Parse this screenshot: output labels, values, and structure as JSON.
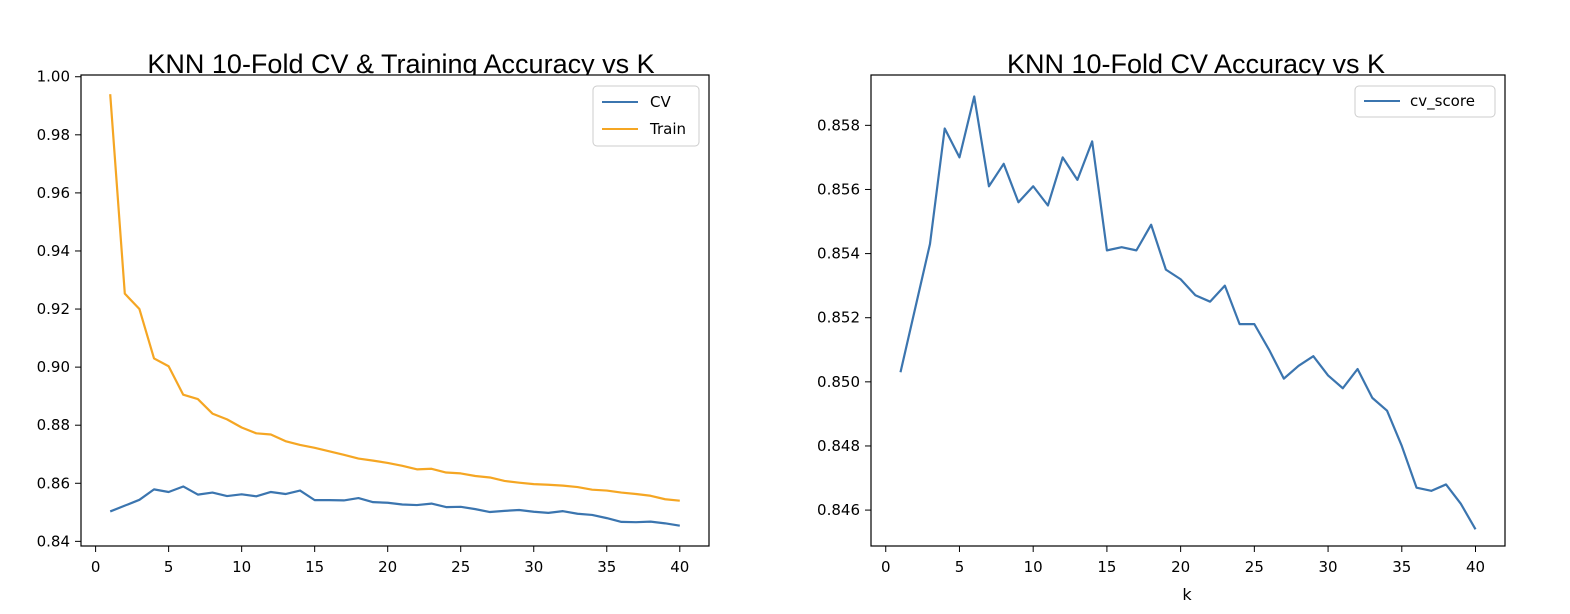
{
  "chart_data": [
    {
      "type": "line",
      "title": "KNN 10-Fold CV & Training Accuracy vs K",
      "xlabel": "",
      "ylabel": "",
      "xlim": [
        -1,
        42
      ],
      "ylim": [
        0.8384,
        1.0006
      ],
      "x_ticks": [
        0,
        5,
        10,
        15,
        20,
        25,
        30,
        35,
        40
      ],
      "y_ticks": [
        0.84,
        0.86,
        0.88,
        0.9,
        0.92,
        0.94,
        0.96,
        0.98,
        1.0
      ],
      "y_tick_labels": [
        "0.84",
        "0.86",
        "0.88",
        "0.90",
        "0.92",
        "0.94",
        "0.96",
        "0.98",
        "1.00"
      ],
      "grid": false,
      "legend_position": "top-right",
      "x": [
        1,
        2,
        3,
        4,
        5,
        6,
        7,
        8,
        9,
        10,
        11,
        12,
        13,
        14,
        15,
        16,
        17,
        18,
        19,
        20,
        21,
        22,
        23,
        24,
        25,
        26,
        27,
        28,
        29,
        30,
        31,
        32,
        33,
        34,
        35,
        36,
        37,
        38,
        39,
        40
      ],
      "series": [
        {
          "name": "CV",
          "color": "#3b75af",
          "values": [
            0.8503,
            0.8523,
            0.8543,
            0.8579,
            0.857,
            0.8589,
            0.8561,
            0.8568,
            0.8556,
            0.8562,
            0.8555,
            0.857,
            0.8563,
            0.8575,
            0.8542,
            0.8542,
            0.8541,
            0.8549,
            0.8535,
            0.8533,
            0.8527,
            0.8525,
            0.853,
            0.8518,
            0.8519,
            0.8511,
            0.8501,
            0.8505,
            0.8508,
            0.8502,
            0.8498,
            0.8504,
            0.8495,
            0.8491,
            0.848,
            0.8467,
            0.8466,
            0.8468,
            0.8462,
            0.8454
          ]
        },
        {
          "name": "Train",
          "color": "#f5a623",
          "values": [
            0.994,
            0.9253,
            0.92,
            0.903,
            0.9003,
            0.8905,
            0.889,
            0.884,
            0.882,
            0.8792,
            0.8772,
            0.8768,
            0.8745,
            0.8732,
            0.8722,
            0.871,
            0.8698,
            0.8685,
            0.8678,
            0.867,
            0.866,
            0.8648,
            0.865,
            0.8637,
            0.8634,
            0.8625,
            0.862,
            0.8608,
            0.8602,
            0.8597,
            0.8595,
            0.8592,
            0.8587,
            0.8578,
            0.8575,
            0.8568,
            0.8563,
            0.8557,
            0.8545,
            0.854
          ]
        }
      ]
    },
    {
      "type": "line",
      "title": "KNN 10-Fold CV Accuracy vs K",
      "xlabel": "k",
      "ylabel": "",
      "xlim": [
        -1,
        42
      ],
      "ylim": [
        0.84488,
        0.85957
      ],
      "x_ticks": [
        0,
        5,
        10,
        15,
        20,
        25,
        30,
        35,
        40
      ],
      "y_ticks": [
        0.846,
        0.848,
        0.85,
        0.852,
        0.854,
        0.856,
        0.858
      ],
      "y_tick_labels": [
        "0.846",
        "0.848",
        "0.850",
        "0.852",
        "0.854",
        "0.856",
        "0.858"
      ],
      "grid": false,
      "legend_position": "top-right",
      "x": [
        1,
        2,
        3,
        4,
        5,
        6,
        7,
        8,
        9,
        10,
        11,
        12,
        13,
        14,
        15,
        16,
        17,
        18,
        19,
        20,
        21,
        22,
        23,
        24,
        25,
        26,
        27,
        28,
        29,
        30,
        31,
        32,
        33,
        34,
        35,
        36,
        37,
        38,
        39,
        40
      ],
      "series": [
        {
          "name": "cv_score",
          "color": "#3b75af",
          "values": [
            0.8503,
            0.8523,
            0.8543,
            0.8579,
            0.857,
            0.8589,
            0.8561,
            0.8568,
            0.8556,
            0.8561,
            0.8555,
            0.857,
            0.8563,
            0.8575,
            0.8541,
            0.8542,
            0.8541,
            0.8549,
            0.8535,
            0.8532,
            0.8527,
            0.8525,
            0.853,
            0.8518,
            0.8518,
            0.851,
            0.8501,
            0.8505,
            0.8508,
            0.8502,
            0.8498,
            0.8504,
            0.8495,
            0.8491,
            0.848,
            0.8467,
            0.8466,
            0.8468,
            0.8462,
            0.8454
          ]
        }
      ]
    }
  ]
}
